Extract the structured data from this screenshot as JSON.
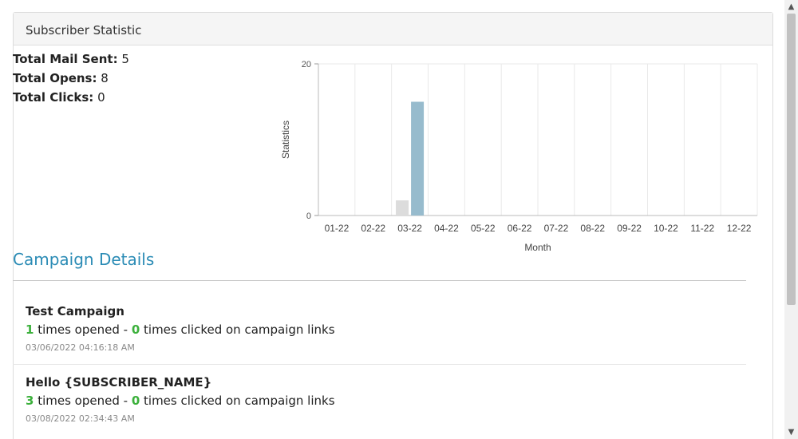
{
  "panel": {
    "title": "Subscriber Statistic"
  },
  "stats": {
    "mail_sent_label": "Total Mail Sent:",
    "mail_sent_value": "5",
    "opens_label": "Total Opens:",
    "opens_value": "8",
    "clicks_label": "Total Clicks:",
    "clicks_value": "0"
  },
  "chart_data": {
    "type": "bar",
    "categories": [
      "01-22",
      "02-22",
      "03-22",
      "04-22",
      "05-22",
      "06-22",
      "07-22",
      "08-22",
      "09-22",
      "10-22",
      "11-22",
      "12-22"
    ],
    "series": [
      {
        "values": [
          0,
          0,
          2,
          0,
          0,
          0,
          0,
          0,
          0,
          0,
          0,
          0
        ],
        "color": "#dcdcdc"
      },
      {
        "values": [
          0,
          0,
          15,
          0,
          0,
          0,
          0,
          0,
          0,
          0,
          0,
          0
        ],
        "color": "#97bbcd"
      }
    ],
    "yticks": [
      0,
      20
    ],
    "ylim": [
      0,
      20
    ],
    "xlabel": "Month",
    "ylabel": "Statistics",
    "grid": true
  },
  "campaign_details": {
    "title": "Campaign Details",
    "items": [
      {
        "name": "Test Campaign",
        "opened": "1",
        "opened_text": " times opened - ",
        "clicked": "0",
        "clicked_text": " times clicked on campaign links",
        "date": "03/06/2022 04:16:18 AM"
      },
      {
        "name": "Hello {SUBSCRIBER_NAME}",
        "opened": "3",
        "opened_text": " times opened - ",
        "clicked": "0",
        "clicked_text": " times clicked on campaign links",
        "date": "03/08/2022 02:34:43 AM"
      }
    ]
  },
  "scrollbar": {
    "up_icon": "chevron-up-icon",
    "down_icon": "chevron-down-icon"
  }
}
